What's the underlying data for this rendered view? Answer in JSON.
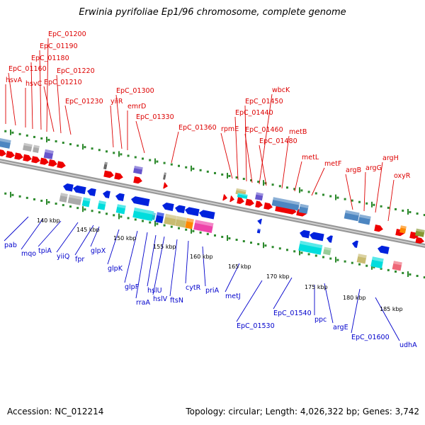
{
  "title": "Erwinia pyrifoliae Ep1/96 chromosome, complete genome",
  "footer": {
    "accession": "Accession: NC_012214",
    "summary": "Topology: circular; Length: 4,026,322 bp; Genes: 3,742"
  },
  "colors": {
    "forward_label": "#dd0000",
    "reverse_label": "#0000cc",
    "backbone": "#999999",
    "tick_green": "#2d8a2d"
  },
  "scale_labels": [
    "140 kbp",
    "145 kbp",
    "150 kbp",
    "155 kbp",
    "160 kbp",
    "165 kbp",
    "170 kbp",
    "175 kbp",
    "180 kbp",
    "185 kbp"
  ],
  "forward_genes": [
    "hsvA",
    "EpC_01160",
    "hsvC",
    "EpC_01180",
    "EpC_01190",
    "EpC_01200",
    "EpC_01210",
    "EpC_01220",
    "EpC_01230",
    "yiiR",
    "EpC_01300",
    "emrD",
    "EpC_01330",
    "EpC_01360",
    "rpmE",
    "EpC_01440",
    "EpC_01450",
    "wbcK",
    "EpC_01460",
    "EpC_01480",
    "metB",
    "metL",
    "metF",
    "argB",
    "argG",
    "argH",
    "oxyR"
  ],
  "reverse_genes": [
    "pab",
    "mqo",
    "tpiA",
    "yiiQ",
    "fpr",
    "glpX",
    "glpK",
    "glpF",
    "rraA",
    "hslU",
    "hslV",
    "ftsN",
    "cytR",
    "priA",
    "metJ",
    "EpC_01530",
    "EpC_01540",
    "ppc",
    "argE",
    "EpC_01600",
    "udhA"
  ]
}
